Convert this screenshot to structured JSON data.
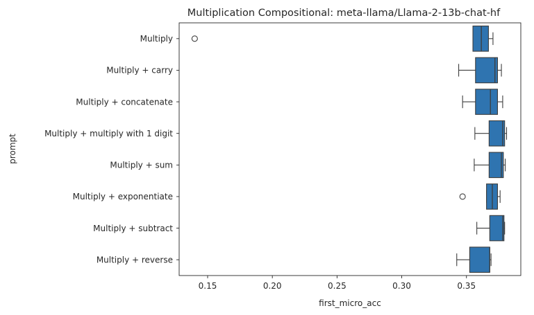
{
  "chart_data": {
    "type": "box",
    "orientation": "horizontal",
    "title": "Multiplication Compositional: meta-llama/Llama-2-13b-chat-hf",
    "xlabel": "first_micro_acc",
    "ylabel": "prompt",
    "xlim": [
      0.128,
      0.392
    ],
    "xticks": [
      0.15,
      0.2,
      0.25,
      0.3,
      0.35
    ],
    "xtick_labels": [
      "0.15",
      "0.20",
      "0.25",
      "0.30",
      "0.35"
    ],
    "grid": false,
    "box_color": "#2f74b0",
    "edge_color": "#3d3d3d",
    "categories": [
      "Multiply",
      "Multiply + carry",
      "Multiply + concatenate",
      "Multiply + multiply with 1 digit",
      "Multiply + sum",
      "Multiply + exponentiate",
      "Multiply + subtract",
      "Multiply + reverse"
    ],
    "boxes": [
      {
        "whislo": 0.355,
        "q1": 0.355,
        "med": 0.3615,
        "q3": 0.367,
        "whishi": 0.3705,
        "fliers": [
          0.14
        ]
      },
      {
        "whislo": 0.344,
        "q1": 0.357,
        "med": 0.372,
        "q3": 0.374,
        "whishi": 0.377,
        "fliers": []
      },
      {
        "whislo": 0.347,
        "q1": 0.357,
        "med": 0.3685,
        "q3": 0.374,
        "whishi": 0.378,
        "fliers": []
      },
      {
        "whislo": 0.3565,
        "q1": 0.3675,
        "med": 0.378,
        "q3": 0.3795,
        "whishi": 0.381,
        "fliers": []
      },
      {
        "whislo": 0.356,
        "q1": 0.3675,
        "med": 0.377,
        "q3": 0.3785,
        "whishi": 0.38,
        "fliers": []
      },
      {
        "whislo": 0.3655,
        "q1": 0.3655,
        "med": 0.37,
        "q3": 0.374,
        "whishi": 0.376,
        "fliers": [
          0.347
        ]
      },
      {
        "whislo": 0.358,
        "q1": 0.368,
        "med": 0.378,
        "q3": 0.379,
        "whishi": 0.3795,
        "fliers": []
      },
      {
        "whislo": 0.3425,
        "q1": 0.3525,
        "med": 0.368,
        "q3": 0.368,
        "whishi": 0.369,
        "fliers": []
      }
    ]
  }
}
